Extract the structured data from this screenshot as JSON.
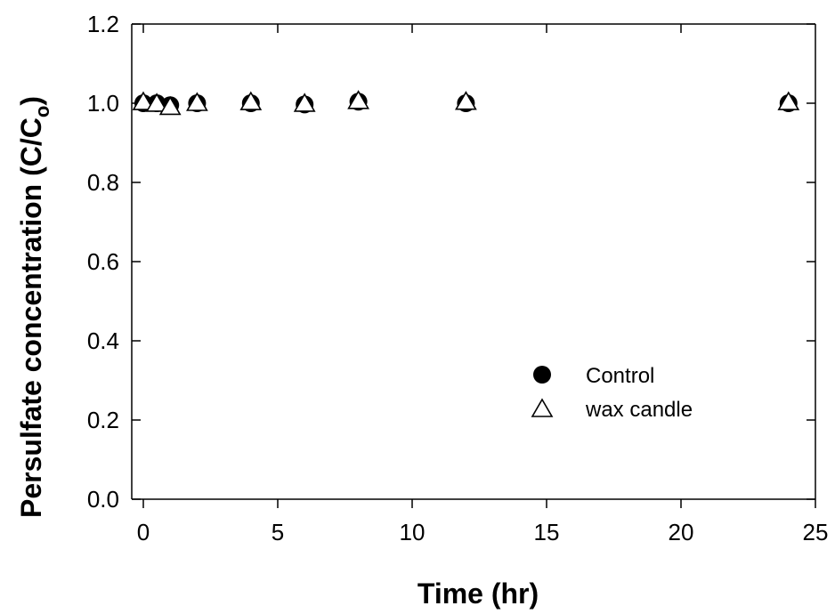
{
  "chart_data": {
    "type": "scatter",
    "title": "",
    "xlabel": "Time (hr)",
    "ylabel_main": "Persulfate concentration (C/C",
    "ylabel_sub": "o",
    "ylabel_close": ")",
    "xlim": [
      0,
      25
    ],
    "ylim": [
      0,
      1.2
    ],
    "x_ticks": [
      "0",
      "5",
      "10",
      "15",
      "20",
      "25"
    ],
    "y_ticks": [
      "0.0",
      "0.2",
      "0.4",
      "0.6",
      "0.8",
      "1.0",
      "1.2"
    ],
    "grid": false,
    "legend_position": "lower-right",
    "series": [
      {
        "name": "Control",
        "marker": "filled-circle",
        "color": "#000000",
        "x": [
          0,
          0.5,
          1,
          2,
          4,
          6,
          8,
          12,
          24
        ],
        "y": [
          1.0,
          1.0,
          0.995,
          1.0,
          1.0,
          0.997,
          1.004,
          1.0,
          1.0
        ]
      },
      {
        "name": "wax candle",
        "marker": "open-triangle",
        "color": "#000000",
        "x": [
          0,
          0.5,
          1,
          2,
          4,
          6,
          8,
          12,
          24
        ],
        "y": [
          1.002,
          0.998,
          0.99,
          1.0,
          1.002,
          0.998,
          1.005,
          1.003,
          1.002
        ],
        "yerr": [
          0,
          0,
          0.015,
          0,
          0,
          0,
          0,
          0,
          0
        ]
      }
    ]
  }
}
